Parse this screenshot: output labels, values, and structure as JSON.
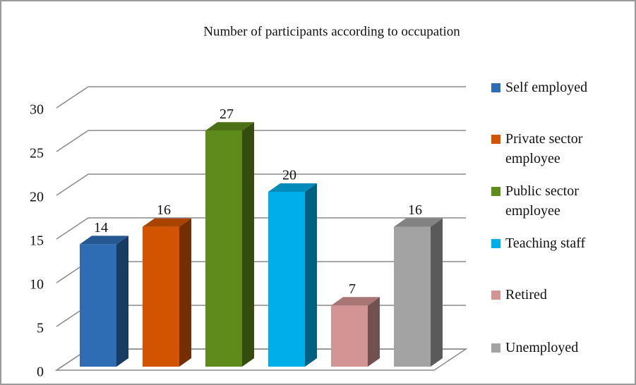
{
  "chart_data": {
    "type": "bar3d",
    "title": "Number of participants  according to  occupation",
    "categories": [
      "Self employed",
      "Private sector employee",
      "Public sector employee",
      "Teaching staff",
      "Retired",
      "Unemployed"
    ],
    "values": [
      14,
      16,
      27,
      20,
      7,
      16
    ],
    "colors": [
      "#2e6db4",
      "#d35400",
      "#5e8c1a",
      "#00aeea",
      "#d39494",
      "#a3a3a3"
    ],
    "ylim": [
      0,
      30
    ],
    "yticks": [
      0,
      5,
      10,
      15,
      20,
      25,
      30
    ],
    "grid": true,
    "legend": "right"
  }
}
